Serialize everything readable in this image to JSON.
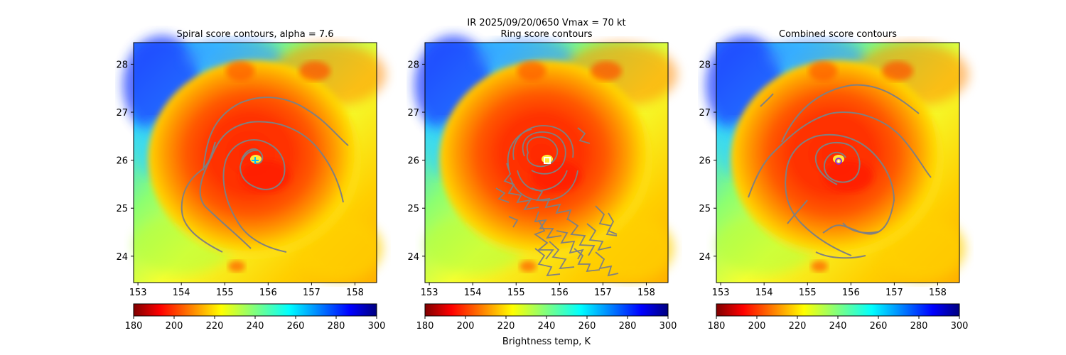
{
  "figure": {
    "suptitle": "IR  2025/09/20/0650    Vmax = 70 kt",
    "colorbar_label": "Brightness temp, K",
    "colormap": [
      "#7f0000",
      "#ff0000",
      "#ff7f00",
      "#ffff00",
      "#7fff7f",
      "#00ffff",
      "#007fff",
      "#0000ff",
      "#00007f"
    ],
    "contour_color": "#808080"
  },
  "chart_data": [
    {
      "type": "heatmap",
      "title": "Spiral score contours, alpha =  7.6",
      "xlabel": "",
      "ylabel": "",
      "xlim": [
        152.9,
        158.5
      ],
      "ylim": [
        23.45,
        28.45
      ],
      "xticks": [
        "153",
        "154",
        "155",
        "156",
        "157",
        "158"
      ],
      "yticks": [
        "24",
        "25",
        "26",
        "27",
        "28"
      ],
      "colorbar": {
        "range": [
          180,
          300
        ],
        "ticks": [
          "180",
          "200",
          "220",
          "240",
          "260",
          "280",
          "300"
        ]
      },
      "center_marker": {
        "lon": 155.7,
        "lat": 25.98,
        "style": "cross",
        "color": "#00c0ff"
      }
    },
    {
      "type": "heatmap",
      "title": "Ring score contours",
      "xlabel": "",
      "ylabel": "",
      "xlim": [
        152.9,
        158.5
      ],
      "ylim": [
        23.45,
        28.45
      ],
      "xticks": [
        "153",
        "154",
        "155",
        "156",
        "157",
        "158"
      ],
      "yticks": [
        "24",
        "25",
        "26",
        "27",
        "28"
      ],
      "colorbar": {
        "range": [
          180,
          300
        ],
        "ticks": [
          "180",
          "200",
          "220",
          "240",
          "260",
          "280",
          "300"
        ]
      },
      "center_marker": {
        "lon": 155.72,
        "lat": 25.97,
        "style": "square",
        "color": "#ffffff"
      }
    },
    {
      "type": "heatmap",
      "title": "Combined score contours",
      "xlabel": "",
      "ylabel": "",
      "xlim": [
        152.9,
        158.5
      ],
      "ylim": [
        23.45,
        28.45
      ],
      "xticks": [
        "153",
        "154",
        "155",
        "156",
        "157",
        "158"
      ],
      "yticks": [
        "24",
        "25",
        "26",
        "27",
        "28"
      ],
      "colorbar": {
        "range": [
          180,
          300
        ],
        "ticks": [
          "180",
          "200",
          "220",
          "240",
          "260",
          "280",
          "300"
        ]
      },
      "center_marker": {
        "lon": 155.72,
        "lat": 25.97,
        "style": "circle",
        "color": "#8a2be2"
      }
    }
  ]
}
